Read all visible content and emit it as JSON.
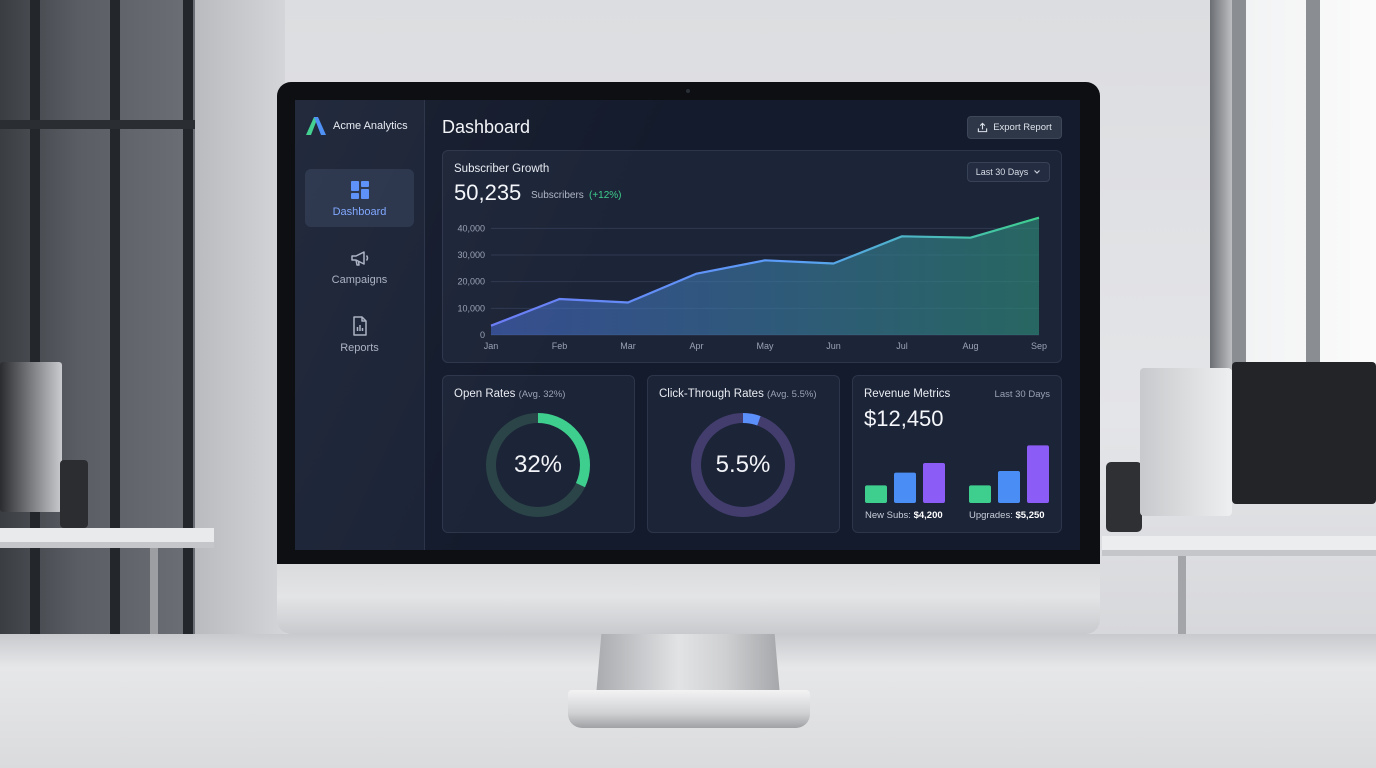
{
  "brand": {
    "name": "Acme Analytics",
    "logo_icon": "acme-logo-icon"
  },
  "sidebar": {
    "items": [
      {
        "label": "Dashboard",
        "icon": "dashboard-grid-icon",
        "active": true
      },
      {
        "label": "Campaigns",
        "icon": "megaphone-icon",
        "active": false
      },
      {
        "label": "Reports",
        "icon": "report-document-icon",
        "active": false
      }
    ]
  },
  "header": {
    "title": "Dashboard",
    "export_label": "Export Report",
    "export_icon": "upload-icon"
  },
  "subscriber_growth": {
    "title": "Subscriber Growth",
    "value": "50,235",
    "unit_label": "Subscribers",
    "delta": "(+12%)",
    "range_label": "Last 30 Days"
  },
  "open_rates": {
    "title": "Open Rates",
    "avg": "(Avg. 32%)",
    "value_label": "32%"
  },
  "click_through": {
    "title": "Click-Through Rates",
    "avg": "(Avg. 5.5%)",
    "value_label": "5.5%"
  },
  "revenue": {
    "title": "Revenue Metrics",
    "range_label": "Last 30 Days",
    "value": "$12,450",
    "new_subs_label": "New Subs:",
    "new_subs_value": "$4,200",
    "upgrades_label": "Upgrades:",
    "upgrades_value": "$5,250"
  },
  "colors": {
    "accent_blue": "#5b8ff9",
    "accent_green": "#3ecf8e",
    "accent_purple": "#8b5cf6",
    "panel_bg": "#1c2437",
    "screen_bg": "#141b2c"
  },
  "chart_data": [
    {
      "type": "area",
      "categories": [
        "Jan",
        "Feb",
        "Mar",
        "Apr",
        "May",
        "Jun",
        "Jul",
        "Aug",
        "Sep"
      ],
      "series": [
        {
          "values": [
            3500,
            13500,
            12200,
            23000,
            28000,
            26800,
            37000,
            36500,
            44000
          ]
        }
      ],
      "yticks": [
        0,
        10000,
        20000,
        30000,
        40000
      ],
      "ytick_labels": [
        "0",
        "10,000",
        "20,000",
        "30,000",
        "40,000"
      ],
      "ylim": [
        0,
        45000
      ],
      "grid": true,
      "title": "Subscriber Growth"
    },
    {
      "type": "pie",
      "title": "Open Rates",
      "values": [
        32,
        68
      ],
      "center_label": "32%",
      "colors": [
        "#3ecf8e",
        "#2a4447"
      ]
    },
    {
      "type": "pie",
      "title": "Click-Through Rates",
      "values": [
        5.5,
        94.5
      ],
      "center_label": "5.5%",
      "colors": [
        "#5b8ff9",
        "#433d6e"
      ]
    },
    {
      "type": "bar",
      "title": "Revenue Metrics",
      "groups": [
        {
          "values": [
            0.22,
            0.38,
            0.5
          ],
          "colors": [
            "#3ecf8e",
            "#4a8ef5",
            "#8b5cf6"
          ]
        },
        {
          "values": [
            0.22,
            0.4,
            0.72
          ],
          "colors": [
            "#3ecf8e",
            "#4a8ef5",
            "#8b5cf6"
          ]
        }
      ]
    }
  ]
}
